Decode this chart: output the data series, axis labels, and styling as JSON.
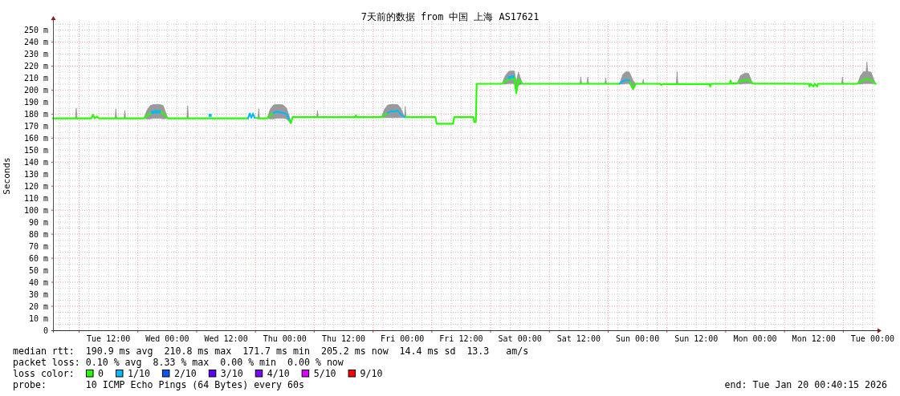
{
  "chart_data": {
    "type": "line",
    "title": "7天前的数据 from 中国 上海 AS17621",
    "ylabel": "Seconds",
    "xlim": [
      "2026-01-13T00:40",
      "2026-01-20T00:40"
    ],
    "xticks": [
      {
        "value": "2026-01-13T06:00",
        "label": null
      },
      {
        "value": "2026-01-13T12:00",
        "label": "Tue 12:00"
      },
      {
        "value": "2026-01-13T18:00",
        "label": null
      },
      {
        "value": "2026-01-14T00:00",
        "label": "Wed 00:00"
      },
      {
        "value": "2026-01-14T06:00",
        "label": null
      },
      {
        "value": "2026-01-14T12:00",
        "label": "Wed 12:00"
      },
      {
        "value": "2026-01-14T18:00",
        "label": null
      },
      {
        "value": "2026-01-15T00:00",
        "label": "Thu 00:00"
      },
      {
        "value": "2026-01-15T06:00",
        "label": null
      },
      {
        "value": "2026-01-15T12:00",
        "label": "Thu 12:00"
      },
      {
        "value": "2026-01-15T18:00",
        "label": null
      },
      {
        "value": "2026-01-16T00:00",
        "label": "Fri 00:00"
      },
      {
        "value": "2026-01-16T06:00",
        "label": null
      },
      {
        "value": "2026-01-16T12:00",
        "label": "Fri 12:00"
      },
      {
        "value": "2026-01-16T18:00",
        "label": null
      },
      {
        "value": "2026-01-17T00:00",
        "label": "Sat 00:00"
      },
      {
        "value": "2026-01-17T06:00",
        "label": null
      },
      {
        "value": "2026-01-17T12:00",
        "label": "Sat 12:00"
      },
      {
        "value": "2026-01-17T18:00",
        "label": null
      },
      {
        "value": "2026-01-18T00:00",
        "label": "Sun 00:00"
      },
      {
        "value": "2026-01-18T06:00",
        "label": null
      },
      {
        "value": "2026-01-18T12:00",
        "label": "Sun 12:00"
      },
      {
        "value": "2026-01-18T18:00",
        "label": null
      },
      {
        "value": "2026-01-19T00:00",
        "label": "Mon 00:00"
      },
      {
        "value": "2026-01-19T06:00",
        "label": null
      },
      {
        "value": "2026-01-19T12:00",
        "label": "Mon 12:00"
      },
      {
        "value": "2026-01-19T18:00",
        "label": null
      },
      {
        "value": "2026-01-20T00:00",
        "label": "Tue 00:00"
      }
    ],
    "ylim": [
      0,
      257
    ],
    "yticks": [
      0,
      {
        "value": 10,
        "label": "10 m"
      },
      {
        "value": 20,
        "label": "20 m"
      },
      {
        "value": 30,
        "label": "30 m"
      },
      {
        "value": 40,
        "label": "40 m"
      },
      {
        "value": 50,
        "label": "50 m"
      },
      {
        "value": 60,
        "label": "60 m"
      },
      {
        "value": 70,
        "label": "70 m"
      },
      {
        "value": 80,
        "label": "80 m"
      },
      {
        "value": 90,
        "label": "90 m"
      },
      {
        "value": 100,
        "label": "100 m"
      },
      {
        "value": 110,
        "label": "110 m"
      },
      {
        "value": 120,
        "label": "120 m"
      },
      {
        "value": 130,
        "label": "130 m"
      },
      {
        "value": 140,
        "label": "140 m"
      },
      {
        "value": 150,
        "label": "150 m"
      },
      {
        "value": 160,
        "label": "160 m"
      },
      {
        "value": 170,
        "label": "170 m"
      },
      {
        "value": 180,
        "label": "180 m"
      },
      {
        "value": 190,
        "label": "190 m"
      },
      {
        "value": 200,
        "label": "200 m"
      },
      {
        "value": 210,
        "label": "210 m"
      },
      {
        "value": 220,
        "label": "220 m"
      },
      {
        "value": 230,
        "label": "230 m"
      },
      {
        "value": 240,
        "label": "240 m"
      },
      {
        "value": 250,
        "label": "250 m"
      }
    ],
    "grid": true,
    "legend": "bottom left",
    "legend_title": "loss color:",
    "series": [
      {
        "name": "0",
        "color": "#26ff00",
        "x": [
          "2026-01-13T00:40",
          "2026-01-13T05:15",
          "2026-01-13T05:25",
          "2026-01-13T05:35",
          "2026-01-13T08:30",
          "2026-01-13T08:50",
          "2026-01-13T09:10",
          "2026-01-13T09:40",
          "2026-01-13T10:00",
          "2026-01-13T13:20",
          "2026-01-13T13:30",
          "2026-01-13T13:40",
          "2026-01-13T15:10",
          "2026-01-13T15:20",
          "2026-01-13T15:30",
          "2026-01-13T19:15",
          "2026-01-13T19:50",
          "2026-01-13T20:30",
          "2026-01-13T21:10",
          "2026-01-13T21:50",
          "2026-01-13T22:30",
          "2026-01-13T23:10",
          "2026-01-14T00:05",
          "2026-01-14T04:00",
          "2026-01-14T04:10",
          "2026-01-14T04:20",
          "2026-01-14T08:15",
          "2026-01-14T08:45",
          "2026-01-14T09:15",
          "2026-01-14T16:30",
          "2026-01-14T16:50",
          "2026-01-14T17:10",
          "2026-01-14T17:30",
          "2026-01-14T17:50",
          "2026-01-14T18:30",
          "2026-01-14T18:40",
          "2026-01-14T18:50",
          "2026-01-14T20:25",
          "2026-01-14T21:00",
          "2026-01-14T21:40",
          "2026-01-14T22:20",
          "2026-01-14T23:00",
          "2026-01-14T23:40",
          "2026-01-15T00:20",
          "2026-01-15T00:50",
          "2026-01-15T01:15",
          "2026-01-15T01:35",
          "2026-01-15T06:30",
          "2026-01-15T06:40",
          "2026-01-15T06:50",
          "2026-01-15T14:20",
          "2026-01-15T14:30",
          "2026-01-15T14:40",
          "2026-01-15T19:45",
          "2026-01-15T20:20",
          "2026-01-15T21:00",
          "2026-01-15T21:40",
          "2026-01-15T22:20",
          "2026-01-15T23:00",
          "2026-01-15T23:40",
          "2026-01-16T00:25",
          "2026-01-16T00:35",
          "2026-01-16T00:45",
          "2026-01-16T06:45",
          "2026-01-16T07:00",
          "2026-01-16T10:20",
          "2026-01-16T10:35",
          "2026-01-16T14:30",
          "2026-01-16T14:40",
          "2026-01-16T15:00",
          "2026-01-16T15:10",
          "2026-01-16T20:20",
          "2026-01-16T21:00",
          "2026-01-16T21:40",
          "2026-01-16T22:20",
          "2026-01-16T22:50",
          "2026-01-16T23:15",
          "2026-01-16T23:40",
          "2026-01-17T00:30",
          "2026-01-17T12:15",
          "2026-01-17T12:25",
          "2026-01-17T12:35",
          "2026-01-17T13:40",
          "2026-01-17T13:50",
          "2026-01-17T14:00",
          "2026-01-17T17:20",
          "2026-01-17T17:30",
          "2026-01-17T17:40",
          "2026-01-17T20:20",
          "2026-01-17T21:00",
          "2026-01-17T21:40",
          "2026-01-17T22:20",
          "2026-01-17T23:05",
          "2026-01-17T23:40",
          "2026-01-18T01:00",
          "2026-01-18T01:10",
          "2026-01-18T01:20",
          "2026-01-18T04:40",
          "2026-01-18T04:50",
          "2026-01-18T05:10",
          "2026-01-18T07:55",
          "2026-01-18T08:05",
          "2026-01-18T08:15",
          "2026-01-18T14:40",
          "2026-01-18T14:50",
          "2026-01-18T15:00",
          "2026-01-18T18:50",
          "2026-01-18T19:00",
          "2026-01-18T19:10",
          "2026-01-18T20:20",
          "2026-01-18T21:00",
          "2026-01-18T21:50",
          "2026-01-18T22:40",
          "2026-01-18T23:30",
          "2026-01-19T11:00",
          "2026-01-19T11:05",
          "2026-01-19T11:20",
          "2026-01-19T11:55",
          "2026-01-19T12:10",
          "2026-01-19T12:40",
          "2026-01-19T12:50",
          "2026-01-19T17:40",
          "2026-01-19T17:50",
          "2026-01-19T18:00",
          "2026-01-19T20:55",
          "2026-01-19T21:30",
          "2026-01-19T22:10",
          "2026-01-19T22:40",
          "2026-01-19T22:50",
          "2026-01-19T23:00",
          "2026-01-19T23:40",
          "2026-01-20T00:35",
          "2026-01-20T00:40"
        ],
        "values": [
          176.5,
          176.5,
          176.5,
          176.5,
          176.5,
          179.5,
          176.5,
          178,
          176.5,
          176.5,
          176.5,
          176.5,
          176.5,
          176.5,
          176.5,
          176.5,
          178.5,
          180.5,
          182,
          181.5,
          182.5,
          180.5,
          176.5,
          176.5,
          176.5,
          176.5,
          176.5,
          176.5,
          176.5,
          176.5,
          null,
          null,
          null,
          177,
          176.5,
          176.5,
          176.5,
          176.5,
          179,
          181,
          null,
          null,
          null,
          null,
          176,
          172.5,
          177.5,
          177.5,
          177.5,
          177.5,
          177.5,
          179,
          177.5,
          177.5,
          179,
          181,
          null,
          null,
          null,
          null,
          177.5,
          177.5,
          177.5,
          177.5,
          172,
          172,
          177.5,
          177.5,
          173.5,
          173.5,
          205.3,
          205.3,
          207,
          209.5,
          209,
          211,
          197.5,
          209,
          205.3,
          205.3,
          205.3,
          205.3,
          205.3,
          205.3,
          205.3,
          205.3,
          205.3,
          205.3,
          205.3,
          null,
          null,
          208,
          201,
          205.3,
          205.3,
          205.3,
          205.3,
          205.3,
          204.2,
          205,
          205,
          205,
          205,
          205,
          203,
          205.3,
          205.3,
          208,
          205.5,
          205.5,
          207.5,
          208,
          208.5,
          205.5,
          205.3,
          203,
          205.3,
          203,
          205.3,
          203,
          205.3,
          205.3,
          205.3,
          205.3,
          205.3,
          207,
          208.5,
          209,
          209,
          209,
          208.5,
          205.3,
          205.3
        ],
        "lower": [
          null,
          176.5,
          176.5,
          176.5,
          null,
          null,
          null,
          null,
          null,
          176.5,
          176.5,
          176.5,
          176.5,
          176.5,
          176.5,
          176.5,
          176,
          176,
          176.5,
          176.5,
          176.5,
          176,
          176.5,
          176.5,
          176.5,
          176.5,
          null,
          null,
          null,
          null,
          null,
          null,
          null,
          null,
          176.5,
          176.5,
          176.5,
          176.5,
          176,
          176,
          176.5,
          176.5,
          176.5,
          176,
          174,
          172,
          177.5,
          177.5,
          177.5,
          177.5,
          null,
          null,
          null,
          177.5,
          177,
          177,
          177,
          177,
          177,
          177,
          177.5,
          177.5,
          177.5,
          null,
          null,
          null,
          null,
          null,
          null,
          null,
          null,
          205.3,
          205,
          205.5,
          205.5,
          205.5,
          197,
          204,
          205.3,
          205.3,
          205.3,
          205.3,
          205.3,
          205.3,
          205.3,
          205.3,
          205.3,
          205.3,
          205.3,
          205,
          205.5,
          205.5,
          200,
          205.3,
          205.3,
          205.3,
          205.3,
          null,
          null,
          null,
          205,
          205,
          205,
          null,
          null,
          null,
          null,
          null,
          null,
          205.5,
          205,
          205.5,
          205.5,
          205.5,
          null,
          null,
          null,
          null,
          null,
          null,
          null,
          205.3,
          205.3,
          205.3,
          205.3,
          205,
          205.5,
          205.5,
          205.5,
          205.5,
          205.5,
          205.3,
          null
        ],
        "upper": [
          null,
          176.5,
          185,
          176.5,
          null,
          null,
          null,
          null,
          null,
          176.5,
          184.5,
          176.5,
          176.5,
          183,
          176.5,
          176.5,
          183,
          187,
          188,
          188,
          188,
          187,
          176.5,
          176.5,
          187,
          176.5,
          null,
          null,
          null,
          null,
          null,
          null,
          null,
          null,
          176.5,
          184.5,
          176.5,
          176.5,
          184,
          187.5,
          188,
          188,
          187.5,
          185,
          179,
          173.5,
          177.5,
          177.5,
          183,
          177.5,
          null,
          null,
          null,
          177.5,
          184,
          187.5,
          188,
          188,
          188,
          185,
          177.5,
          186.5,
          177.5,
          null,
          null,
          null,
          null,
          null,
          null,
          null,
          null,
          205.3,
          212,
          215.5,
          216,
          216,
          207,
          215,
          205.3,
          205.3,
          211,
          205.3,
          205.3,
          211,
          205.3,
          205.3,
          210,
          205.3,
          205.3,
          213,
          215.5,
          215,
          208,
          205.3,
          205.3,
          209,
          205.3,
          null,
          null,
          null,
          205,
          215.4,
          205,
          null,
          null,
          null,
          null,
          null,
          null,
          205.5,
          212,
          214,
          214,
          205.5,
          null,
          null,
          null,
          null,
          null,
          null,
          null,
          205.3,
          211,
          205.3,
          205.3,
          212,
          215.5,
          215.5,
          223.5,
          215.5,
          215,
          205.3,
          null
        ]
      },
      {
        "name": "1/10",
        "color": "#00b8ff",
        "x": [
          "2026-01-14T16:30",
          "2026-01-14T16:50",
          "2026-01-14T17:10",
          "2026-01-14T17:30",
          "2026-01-14T17:50",
          "2026-01-14T19:00",
          "2026-01-14T21:40",
          "2026-01-14T22:20",
          "2026-01-14T23:00",
          "2026-01-14T23:40",
          "2026-01-15T00:20",
          "2026-01-15T00:50",
          "2026-01-15T12:00",
          "2026-01-15T21:00",
          "2026-01-15T21:40",
          "2026-01-15T22:20",
          "2026-01-15T23:00",
          "2026-01-15T23:40",
          "2026-01-16T00:25",
          "2026-01-17T12:00",
          "2026-01-17T20:20",
          "2026-01-17T21:00",
          "2026-01-17T21:40",
          "2026-01-17T22:20"
        ],
        "values": [
          176.5,
          180.5,
          177,
          180.5,
          177,
          null,
          181,
          182,
          181.5,
          181,
          180,
          176,
          null,
          181,
          182.5,
          182,
          183,
          180,
          177.5,
          null,
          205.3,
          207.5,
          208.5,
          208
        ]
      },
      {
        "type": "scatter",
        "marker": "square",
        "color": "#00b8ff",
        "x": [
          "2026-01-13T21:00",
          "2026-01-13T21:40",
          "2026-01-13T22:20",
          "2026-01-14T08:45",
          "2026-01-16T21:50",
          "2026-01-16T22:30"
        ],
        "values": [
          181.5,
          182,
          182,
          179,
          210.5,
          211
        ]
      },
      {
        "name": "2/10",
        "color": "#0059ff"
      },
      {
        "name": "3/10",
        "color": "#5e00ff"
      },
      {
        "name": "4/10",
        "color": "#7e00ff"
      },
      {
        "name": "5/10",
        "color": "#dd00ff"
      },
      {
        "name": "9/10",
        "color": "#ff0000"
      }
    ],
    "annotations": [
      "median rtt:  190.9 ms avg  210.8 ms max  171.7 ms min  205.2 ms now  14.4 ms sd  13.3   am/s",
      "packet loss: 0.10 % avg  8.33 % max  0.00 % min  0.00 % now",
      "probe:       10 ICMP Echo Pings (64 Bytes) every 60s",
      "end: Tue Jan 20 00:40:15 2026"
    ]
  }
}
